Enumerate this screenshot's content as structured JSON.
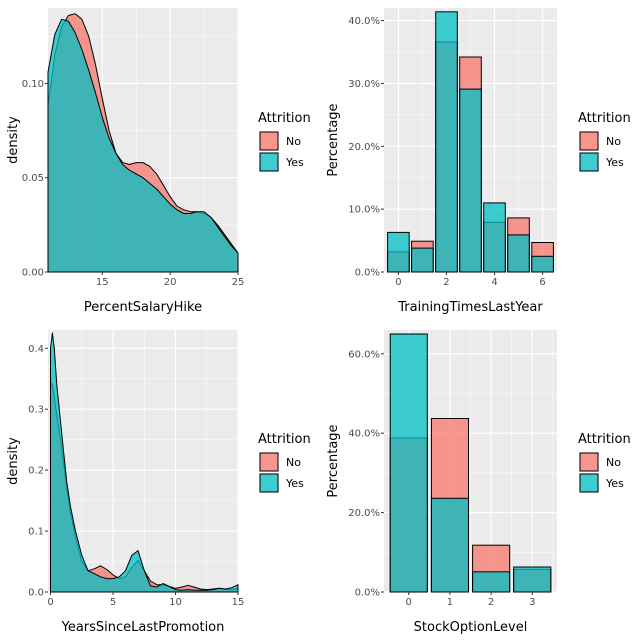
{
  "colors": {
    "No": "#F8766D",
    "Yes": "#00BFC4",
    "panel_bg": "#EBEBEB",
    "grid": "#FFFFFF"
  },
  "chart_data": [
    {
      "type": "area",
      "xlabel": "PercentSalaryHike",
      "ylabel": "density",
      "xlim": [
        11,
        25
      ],
      "ylim": [
        0,
        0.14
      ],
      "x_ticks": [
        15,
        20,
        25
      ],
      "x_tick_labels": [
        "15",
        "20",
        "25"
      ],
      "y_ticks": [
        0,
        0.05,
        0.1
      ],
      "y_tick_labels": [
        "0.00",
        "0.05",
        "0.10"
      ],
      "legend": {
        "title": "Attrition",
        "entries": [
          "No",
          "Yes"
        ],
        "placement": "right"
      },
      "series": [
        {
          "name": "No",
          "x": [
            11,
            11.5,
            12,
            12.5,
            13,
            13.5,
            14,
            14.5,
            15,
            15.5,
            16,
            16.5,
            17,
            17.5,
            18,
            18.5,
            19,
            19.5,
            20,
            20.5,
            21,
            21.5,
            22,
            22.5,
            23,
            23.5,
            24,
            24.5,
            25
          ],
          "y": [
            0.088,
            0.115,
            0.13,
            0.136,
            0.137,
            0.134,
            0.125,
            0.11,
            0.092,
            0.075,
            0.063,
            0.058,
            0.057,
            0.058,
            0.058,
            0.056,
            0.052,
            0.046,
            0.04,
            0.035,
            0.033,
            0.032,
            0.032,
            0.031,
            0.029,
            0.025,
            0.02,
            0.015,
            0.01
          ]
        },
        {
          "name": "Yes",
          "x": [
            11,
            11.5,
            12,
            12.5,
            13,
            13.5,
            14,
            14.5,
            15,
            15.5,
            16,
            16.5,
            17,
            17.5,
            18,
            18.5,
            19,
            19.5,
            20,
            20.5,
            21,
            21.5,
            22,
            22.5,
            23,
            23.5,
            24,
            24.5,
            25
          ],
          "y": [
            0.106,
            0.126,
            0.134,
            0.133,
            0.127,
            0.118,
            0.107,
            0.095,
            0.082,
            0.071,
            0.063,
            0.057,
            0.054,
            0.052,
            0.05,
            0.047,
            0.044,
            0.04,
            0.036,
            0.033,
            0.031,
            0.031,
            0.032,
            0.032,
            0.029,
            0.024,
            0.019,
            0.014,
            0.01
          ]
        }
      ]
    },
    {
      "type": "bar",
      "xlabel": "TrainingTimesLastYear",
      "ylabel": "Percentage",
      "categories": [
        0,
        1,
        2,
        3,
        4,
        5,
        6
      ],
      "xlim": [
        -0.6,
        6.6
      ],
      "ylim": [
        0,
        0.42
      ],
      "x_ticks": [
        0,
        2,
        4,
        6
      ],
      "x_tick_labels": [
        "0",
        "2",
        "4",
        "6"
      ],
      "y_ticks": [
        0,
        0.1,
        0.2,
        0.3,
        0.4
      ],
      "y_tick_labels": [
        "0.0%",
        "10.0%",
        "20.0%",
        "30.0%",
        "40.0%"
      ],
      "legend": {
        "title": "Attrition",
        "entries": [
          "No",
          "Yes"
        ],
        "placement": "right"
      },
      "series": [
        {
          "name": "No",
          "values": [
            0.032,
            0.049,
            0.366,
            0.342,
            0.079,
            0.086,
            0.047
          ]
        },
        {
          "name": "Yes",
          "values": [
            0.063,
            0.038,
            0.414,
            0.291,
            0.11,
            0.059,
            0.025
          ]
        }
      ]
    },
    {
      "type": "area",
      "xlabel": "YearsSinceLastPromotion",
      "ylabel": "density",
      "xlim": [
        -0.2,
        15
      ],
      "ylim": [
        0,
        0.43
      ],
      "x_ticks": [
        0,
        5,
        10,
        15
      ],
      "x_tick_labels": [
        "0",
        "5",
        "10",
        "15"
      ],
      "y_ticks": [
        0,
        0.1,
        0.2,
        0.3,
        0.4
      ],
      "y_tick_labels": [
        "0.0",
        "0.1",
        "0.2",
        "0.3",
        "0.4"
      ],
      "legend": {
        "title": "Attrition",
        "entries": [
          "No",
          "Yes"
        ],
        "placement": "right"
      },
      "series": [
        {
          "name": "No",
          "x": [
            0,
            0.15,
            0.3,
            0.5,
            0.8,
            1.0,
            1.3,
            1.6,
            2.0,
            2.5,
            3.0,
            3.5,
            4.0,
            4.5,
            5.0,
            5.5,
            6.0,
            6.5,
            7.0,
            7.5,
            8.0,
            8.5,
            9.0,
            9.5,
            10.0,
            10.5,
            11.0,
            11.5,
            12.0,
            12.5,
            13.0,
            13.5,
            14.0,
            14.5,
            15.0
          ],
          "y": [
            0.345,
            0.34,
            0.32,
            0.29,
            0.25,
            0.22,
            0.17,
            0.13,
            0.09,
            0.05,
            0.035,
            0.038,
            0.043,
            0.037,
            0.028,
            0.022,
            0.025,
            0.04,
            0.052,
            0.035,
            0.018,
            0.012,
            0.012,
            0.009,
            0.006,
            0.008,
            0.011,
            0.008,
            0.005,
            0.004,
            0.005,
            0.006,
            0.004,
            0.004,
            0.006
          ]
        },
        {
          "name": "Yes",
          "x": [
            0,
            0.15,
            0.3,
            0.5,
            0.8,
            1.0,
            1.3,
            1.6,
            2.0,
            2.5,
            3.0,
            3.5,
            4.0,
            4.5,
            5.0,
            5.5,
            6.0,
            6.5,
            7.0,
            7.5,
            8.0,
            8.5,
            9.0,
            9.5,
            10.0,
            10.5,
            11.0,
            11.5,
            12.0,
            12.5,
            13.0,
            13.5,
            14.0,
            14.5,
            15.0
          ],
          "y": [
            0.4,
            0.425,
            0.4,
            0.34,
            0.28,
            0.24,
            0.18,
            0.14,
            0.1,
            0.06,
            0.035,
            0.03,
            0.025,
            0.022,
            0.022,
            0.025,
            0.035,
            0.06,
            0.068,
            0.035,
            0.01,
            0.008,
            0.014,
            0.009,
            0.004,
            0.003,
            0.004,
            0.003,
            0.003,
            0.003,
            0.004,
            0.006,
            0.005,
            0.007,
            0.012
          ]
        }
      ]
    },
    {
      "type": "bar",
      "xlabel": "StockOptionLevel",
      "ylabel": "Percentage",
      "categories": [
        0,
        1,
        2,
        3
      ],
      "xlim": [
        -0.6,
        3.6
      ],
      "ylim": [
        0,
        0.66
      ],
      "x_ticks": [
        0,
        1,
        2,
        3
      ],
      "x_tick_labels": [
        "0",
        "1",
        "2",
        "3"
      ],
      "y_ticks": [
        0,
        0.2,
        0.4,
        0.6
      ],
      "y_tick_labels": [
        "0.0%",
        "20.0%",
        "40.0%",
        "60.0%"
      ],
      "legend": {
        "title": "Attrition",
        "entries": [
          "No",
          "Yes"
        ],
        "placement": "right"
      },
      "series": [
        {
          "name": "No",
          "values": [
            0.388,
            0.437,
            0.118,
            0.057
          ]
        },
        {
          "name": "Yes",
          "values": [
            0.65,
            0.236,
            0.051,
            0.063
          ]
        }
      ]
    }
  ]
}
